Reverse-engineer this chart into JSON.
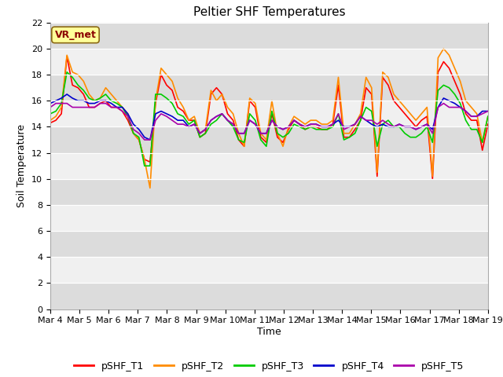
{
  "title": "Peltier SHF Temperatures",
  "xlabel": "Time",
  "ylabel": "Soil Temperature",
  "ylim": [
    0,
    22
  ],
  "yticks": [
    0,
    2,
    4,
    6,
    8,
    10,
    12,
    14,
    16,
    18,
    20,
    22
  ],
  "x_labels": [
    "Mar 4",
    "Mar 5",
    "Mar 6",
    "Mar 7",
    "Mar 8",
    "Mar 9",
    "Mar 10",
    "Mar 11",
    "Mar 12",
    "Mar 13",
    "Mar 14",
    "Mar 15",
    "Mar 16",
    "Mar 17",
    "Mar 18",
    "Mar 19"
  ],
  "annotation": "VR_met",
  "annotation_color": "#8B0000",
  "annotation_bg": "#FFFF99",
  "fig_bg": "#FFFFFF",
  "plot_bg_light": "#F0F0F0",
  "plot_bg_dark": "#DCDCDC",
  "grid_color": "#FFFFFF",
  "series_names": [
    "pSHF_T1",
    "pSHF_T2",
    "pSHF_T3",
    "pSHF_T4",
    "pSHF_T5"
  ],
  "series_colors": [
    "#FF0000",
    "#FF8C00",
    "#00CC00",
    "#0000CC",
    "#AA00AA"
  ],
  "series": {
    "pSHF_T1": [
      14.3,
      14.5,
      15.0,
      19.4,
      17.2,
      17.0,
      16.5,
      15.5,
      15.5,
      15.8,
      16.0,
      15.5,
      15.5,
      15.2,
      14.5,
      13.5,
      13.0,
      11.5,
      11.3,
      15.8,
      18.0,
      17.2,
      16.8,
      15.5,
      15.2,
      14.5,
      14.5,
      13.2,
      13.5,
      16.5,
      17.0,
      16.5,
      15.0,
      14.5,
      13.0,
      12.5,
      16.0,
      15.5,
      13.2,
      12.8,
      15.0,
      13.2,
      12.8,
      13.8,
      14.5,
      14.2,
      13.8,
      14.0,
      14.0,
      13.8,
      13.8,
      14.2,
      17.2,
      13.2,
      13.2,
      13.8,
      14.5,
      17.0,
      16.5,
      10.2,
      17.8,
      17.2,
      16.0,
      15.5,
      15.0,
      14.5,
      14.0,
      14.5,
      14.8,
      10.0,
      18.2,
      19.0,
      18.5,
      17.5,
      16.5,
      15.0,
      14.5,
      14.5,
      12.2,
      14.2
    ],
    "pSHF_T2": [
      14.5,
      14.8,
      15.5,
      19.5,
      18.2,
      18.0,
      17.5,
      16.5,
      16.0,
      16.2,
      17.0,
      16.5,
      16.0,
      15.5,
      15.0,
      13.5,
      13.0,
      11.5,
      9.3,
      16.0,
      18.5,
      18.0,
      17.5,
      16.2,
      15.5,
      14.5,
      14.8,
      13.5,
      13.8,
      16.8,
      16.0,
      16.5,
      15.5,
      15.0,
      13.5,
      12.5,
      16.2,
      15.8,
      13.5,
      13.0,
      16.0,
      13.5,
      12.5,
      14.0,
      14.8,
      14.5,
      14.2,
      14.5,
      14.5,
      14.2,
      14.2,
      14.5,
      17.8,
      13.5,
      13.5,
      14.2,
      15.0,
      17.8,
      17.0,
      10.5,
      18.2,
      17.8,
      16.5,
      16.0,
      15.5,
      15.0,
      14.5,
      15.0,
      15.5,
      10.2,
      19.3,
      20.0,
      19.5,
      18.5,
      17.5,
      16.0,
      15.5,
      15.0,
      12.8,
      14.8
    ],
    "pSHF_T3": [
      15.0,
      15.2,
      15.8,
      18.2,
      17.8,
      17.2,
      16.8,
      16.2,
      16.0,
      16.2,
      16.5,
      16.0,
      15.8,
      15.5,
      14.8,
      13.5,
      13.2,
      11.0,
      11.0,
      16.5,
      16.5,
      16.2,
      15.8,
      15.0,
      14.8,
      14.2,
      14.5,
      13.2,
      13.5,
      14.2,
      14.5,
      15.0,
      14.5,
      14.0,
      13.0,
      12.8,
      15.0,
      14.5,
      13.0,
      12.5,
      15.2,
      13.5,
      13.2,
      13.5,
      14.2,
      14.0,
      13.8,
      14.0,
      13.8,
      13.8,
      13.8,
      14.0,
      15.0,
      13.0,
      13.2,
      13.5,
      14.5,
      15.5,
      15.2,
      12.5,
      14.2,
      14.5,
      14.0,
      14.0,
      13.5,
      13.2,
      13.2,
      13.5,
      14.0,
      12.8,
      16.8,
      17.2,
      17.0,
      16.5,
      15.8,
      14.5,
      13.8,
      13.8,
      12.8,
      14.8
    ],
    "pSHF_T4": [
      15.8,
      16.0,
      16.2,
      16.5,
      16.2,
      16.0,
      16.0,
      15.8,
      15.8,
      16.0,
      16.0,
      15.8,
      15.5,
      15.5,
      15.0,
      14.2,
      13.8,
      13.2,
      13.0,
      15.0,
      15.2,
      15.0,
      14.8,
      14.5,
      14.5,
      14.0,
      14.2,
      13.5,
      13.8,
      14.5,
      14.8,
      15.0,
      14.5,
      14.2,
      13.5,
      13.5,
      14.5,
      14.2,
      13.5,
      13.5,
      14.5,
      14.0,
      13.8,
      14.0,
      14.5,
      14.2,
      14.0,
      14.2,
      14.2,
      14.0,
      14.0,
      14.2,
      14.5,
      14.0,
      14.0,
      14.2,
      14.8,
      14.5,
      14.2,
      14.0,
      14.2,
      14.0,
      14.0,
      14.2,
      14.0,
      14.0,
      13.8,
      14.0,
      14.2,
      13.8,
      15.5,
      16.2,
      16.0,
      15.8,
      15.5,
      15.2,
      14.8,
      14.8,
      15.2,
      15.2
    ],
    "pSHF_T5": [
      15.5,
      15.8,
      15.8,
      15.8,
      15.5,
      15.5,
      15.5,
      15.5,
      15.5,
      15.8,
      15.8,
      15.5,
      15.5,
      15.2,
      14.8,
      13.8,
      13.5,
      13.0,
      13.0,
      14.5,
      15.0,
      14.8,
      14.5,
      14.2,
      14.2,
      14.0,
      14.2,
      13.5,
      13.8,
      14.5,
      14.8,
      15.0,
      14.5,
      14.2,
      13.5,
      13.5,
      14.5,
      14.2,
      13.5,
      13.5,
      14.5,
      14.0,
      13.8,
      14.0,
      14.5,
      14.2,
      14.0,
      14.2,
      14.2,
      14.0,
      14.0,
      14.2,
      15.0,
      13.8,
      14.0,
      14.2,
      14.8,
      14.5,
      14.5,
      14.2,
      14.5,
      14.2,
      14.0,
      14.2,
      14.0,
      14.0,
      13.8,
      14.0,
      14.2,
      13.5,
      15.5,
      15.8,
      15.5,
      15.5,
      15.5,
      15.2,
      14.8,
      14.8,
      15.0,
      15.2
    ]
  },
  "n_points": 80,
  "days": 15,
  "title_fontsize": 11,
  "label_fontsize": 9,
  "tick_fontsize": 8,
  "legend_fontsize": 9,
  "linewidth": 1.2
}
